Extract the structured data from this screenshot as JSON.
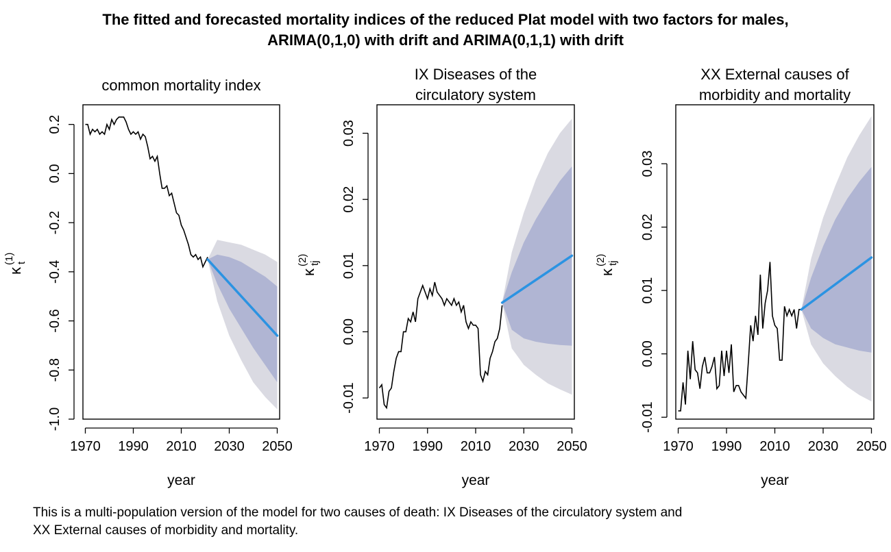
{
  "title_line1": "The fitted and forecasted mortality indices of the reduced Plat model with two factors for males,",
  "title_line2": "ARIMA(0,1,0) with drift and ARIMA(0,1,1) with drift",
  "caption_line1": "This is a multi-population version of the model for two causes of death: IX Diseases of the circulatory system and",
  "caption_line2": "XX External causes of morbidity and mortality.",
  "colors": {
    "history": "#000000",
    "forecast": "#2b93e2",
    "band_inner": "#b0b5d3",
    "band_outer": "#dadae2"
  },
  "chart_data": [
    {
      "type": "line",
      "title": [
        "common mortality index"
      ],
      "xlabel": "year",
      "ylabel": {
        "base": "κ",
        "sup": "(1)",
        "sub": "t"
      },
      "xlim": [
        1969,
        2051
      ],
      "ylim": [
        -1.0,
        0.28
      ],
      "xticks": [
        1970,
        1990,
        2010,
        2030,
        2050
      ],
      "yticks": [
        -1.0,
        -0.8,
        -0.6,
        -0.4,
        -0.2,
        0.0,
        0.2
      ],
      "ytick_labels": [
        "-1.0",
        "-0.8",
        "-0.6",
        "-0.4",
        "-0.2",
        "0.0",
        "0.2"
      ],
      "history": {
        "x": [
          1970,
          1971,
          1972,
          1973,
          1974,
          1975,
          1976,
          1977,
          1978,
          1979,
          1980,
          1981,
          1982,
          1983,
          1984,
          1985,
          1986,
          1987,
          1988,
          1989,
          1990,
          1991,
          1992,
          1993,
          1994,
          1995,
          1996,
          1997,
          1998,
          1999,
          2000,
          2001,
          2002,
          2003,
          2004,
          2005,
          2006,
          2007,
          2008,
          2009,
          2010,
          2011,
          2012,
          2013,
          2014,
          2015,
          2016,
          2017,
          2018,
          2019,
          2020,
          2021
        ],
        "y": [
          0.2,
          0.2,
          0.16,
          0.18,
          0.17,
          0.18,
          0.16,
          0.17,
          0.16,
          0.2,
          0.18,
          0.22,
          0.2,
          0.22,
          0.23,
          0.23,
          0.23,
          0.21,
          0.18,
          0.16,
          0.17,
          0.16,
          0.17,
          0.14,
          0.16,
          0.15,
          0.11,
          0.06,
          0.07,
          0.05,
          0.07,
          0.0,
          -0.06,
          -0.06,
          -0.05,
          -0.09,
          -0.08,
          -0.12,
          -0.16,
          -0.17,
          -0.21,
          -0.23,
          -0.26,
          -0.29,
          -0.33,
          -0.34,
          -0.33,
          -0.35,
          -0.34,
          -0.38,
          -0.36,
          -0.34
        ]
      },
      "forecast": {
        "x": [
          2021,
          2050
        ],
        "y": [
          -0.35,
          -0.66
        ],
        "inner_band": {
          "lower": [
            -0.35,
            -0.45,
            -0.55,
            -0.63,
            -0.71,
            -0.78,
            -0.85
          ],
          "upper": [
            -0.35,
            -0.33,
            -0.34,
            -0.36,
            -0.39,
            -0.42,
            -0.46
          ]
        },
        "outer_band": {
          "lower": [
            -0.35,
            -0.52,
            -0.66,
            -0.76,
            -0.85,
            -0.91,
            -0.96
          ],
          "upper": [
            -0.35,
            -0.27,
            -0.28,
            -0.29,
            -0.31,
            -0.33,
            -0.36
          ]
        },
        "band_x": [
          2021,
          2025,
          2030,
          2035,
          2040,
          2045,
          2050
        ]
      }
    },
    {
      "type": "line",
      "title": [
        "IX Diseases of the",
        "circulatory system"
      ],
      "xlabel": "year",
      "ylabel": {
        "base": "κ",
        "sup": "(2)",
        "sub": "tj"
      },
      "xlim": [
        1969,
        2051
      ],
      "ylim": [
        -0.0132,
        0.0343
      ],
      "xticks": [
        1970,
        1990,
        2010,
        2030,
        2050
      ],
      "yticks": [
        -0.01,
        0.0,
        0.01,
        0.02,
        0.03
      ],
      "ytick_labels": [
        "-0.01",
        "0.00",
        "0.01",
        "0.02",
        "0.03"
      ],
      "history": {
        "x": [
          1970,
          1971,
          1972,
          1973,
          1974,
          1975,
          1976,
          1977,
          1978,
          1979,
          1980,
          1981,
          1982,
          1983,
          1984,
          1985,
          1986,
          1987,
          1988,
          1989,
          1990,
          1991,
          1992,
          1993,
          1994,
          1995,
          1996,
          1997,
          1998,
          1999,
          2000,
          2001,
          2002,
          2003,
          2004,
          2005,
          2006,
          2007,
          2008,
          2009,
          2010,
          2011,
          2012,
          2013,
          2014,
          2015,
          2016,
          2017,
          2018,
          2019,
          2020,
          2021
        ],
        "y": [
          -0.0085,
          -0.008,
          -0.011,
          -0.0115,
          -0.009,
          -0.0085,
          -0.006,
          -0.004,
          -0.003,
          -0.003,
          0.0,
          0.0,
          0.002,
          0.0015,
          0.003,
          0.0015,
          0.005,
          0.006,
          0.007,
          0.006,
          0.005,
          0.0065,
          0.0055,
          0.0075,
          0.006,
          0.0055,
          0.005,
          0.004,
          0.005,
          0.0045,
          0.004,
          0.005,
          0.004,
          0.0045,
          0.003,
          0.004,
          0.0015,
          0.0005,
          0.0015,
          0.001,
          0.001,
          0.0005,
          -0.0065,
          -0.0075,
          -0.006,
          -0.0065,
          -0.004,
          -0.003,
          -0.0015,
          -0.001,
          0.0005,
          0.004
        ]
      },
      "forecast": {
        "x": [
          2021,
          2050
        ],
        "y": [
          0.0044,
          0.0115
        ],
        "inner_band": {
          "lower": [
            0.0044,
            0.0003,
            -0.001,
            -0.0015,
            -0.0018,
            -0.002,
            -0.0021
          ],
          "upper": [
            0.0044,
            0.009,
            0.0135,
            0.017,
            0.02,
            0.0228,
            0.025
          ]
        },
        "outer_band": {
          "lower": [
            0.0044,
            -0.0025,
            -0.005,
            -0.0065,
            -0.0078,
            -0.0087,
            -0.0095
          ],
          "upper": [
            0.0044,
            0.012,
            0.018,
            0.023,
            0.027,
            0.03,
            0.0322
          ]
        },
        "band_x": [
          2021,
          2025,
          2030,
          2035,
          2040,
          2045,
          2050
        ]
      }
    },
    {
      "type": "line",
      "title": [
        "XX External causes of",
        "morbidity and mortality"
      ],
      "xlabel": "year",
      "ylabel": {
        "base": "κ",
        "sup": "(2)",
        "sub": "tj"
      },
      "xlim": [
        1969,
        2051
      ],
      "ylim": [
        -0.0103,
        0.0393
      ],
      "xticks": [
        1970,
        1990,
        2010,
        2030,
        2050
      ],
      "yticks": [
        -0.01,
        0.0,
        0.01,
        0.02,
        0.03
      ],
      "ytick_labels": [
        "-0.01",
        "0.00",
        "0.01",
        "0.02",
        "0.03"
      ],
      "history": {
        "x": [
          1970,
          1971,
          1972,
          1973,
          1974,
          1975,
          1976,
          1977,
          1978,
          1979,
          1980,
          1981,
          1982,
          1983,
          1984,
          1985,
          1986,
          1987,
          1988,
          1989,
          1990,
          1991,
          1992,
          1993,
          1994,
          1995,
          1996,
          1997,
          1998,
          1999,
          2000,
          2001,
          2002,
          2003,
          2004,
          2005,
          2006,
          2007,
          2008,
          2009,
          2010,
          2011,
          2012,
          2013,
          2014,
          2015,
          2016,
          2017,
          2018,
          2019,
          2020,
          2021
        ],
        "y": [
          -0.009,
          -0.009,
          -0.0045,
          -0.008,
          0.0005,
          -0.004,
          0.002,
          -0.0025,
          -0.003,
          -0.0055,
          -0.002,
          -0.0005,
          -0.003,
          -0.003,
          -0.002,
          -0.0005,
          -0.0055,
          -0.005,
          0.0005,
          -0.0035,
          0.0005,
          -0.003,
          0.0015,
          -0.006,
          -0.005,
          -0.005,
          -0.006,
          -0.0065,
          -0.007,
          -0.0015,
          0.0045,
          0.002,
          0.006,
          0.003,
          0.0125,
          0.004,
          0.008,
          0.01,
          0.0145,
          0.006,
          0.0045,
          0.004,
          -0.001,
          -0.001,
          0.0075,
          0.006,
          0.007,
          0.006,
          0.007,
          0.004,
          0.007,
          0.007
        ]
      },
      "forecast": {
        "x": [
          2021,
          2050
        ],
        "y": [
          0.007,
          0.0152
        ],
        "inner_band": {
          "lower": [
            0.007,
            0.004,
            0.0025,
            0.0015,
            0.001,
            0.0005,
            0.0002
          ],
          "upper": [
            0.007,
            0.012,
            0.017,
            0.0212,
            0.0245,
            0.0272,
            0.0295
          ]
        },
        "outer_band": {
          "lower": [
            0.007,
            0.0015,
            -0.0015,
            -0.0035,
            -0.0052,
            -0.0065,
            -0.0075
          ],
          "upper": [
            0.007,
            0.015,
            0.0215,
            0.0265,
            0.031,
            0.0345,
            0.0375
          ]
        },
        "band_x": [
          2021,
          2025,
          2030,
          2035,
          2040,
          2045,
          2050
        ]
      }
    }
  ]
}
